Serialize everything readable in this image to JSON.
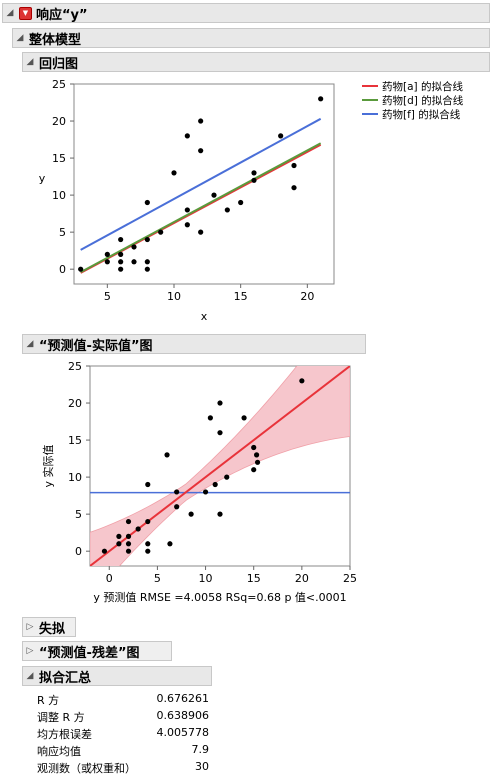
{
  "report": {
    "title": "响应“y”",
    "whole_model": "整体模型",
    "regression_plot": {
      "title": "回归图",
      "ylabel": "y",
      "xlabel": "x",
      "legend": [
        "药物[a] 的拟合线",
        "药物[d] 的拟合线",
        "药物[f] 的拟合线"
      ]
    },
    "actual_by_predicted": {
      "title": "“预测值-实际值”图",
      "ylabel": "y 实际值",
      "xlabel": "y 预测值 RMSE =4.0058 RSq=0.68 p 值<.0001"
    },
    "lack_of_fit": "失拟",
    "residual_by_predicted": "“预测值-残差”图",
    "summary": {
      "title": "拟合汇总",
      "rows": [
        {
          "label": "R 方",
          "value": "0.676261"
        },
        {
          "label": "调整 R 方",
          "value": "0.638906"
        },
        {
          "label": "均方根误差",
          "value": "4.005778"
        },
        {
          "label": "响应均值",
          "value": "7.9"
        },
        {
          "label": "观测数（或权重和）",
          "value": "30"
        }
      ]
    }
  },
  "colors": {
    "red": "#e8333a",
    "green": "#5a9a3c",
    "blue": "#4a6fd8",
    "band": "#f6c6cc"
  },
  "chart_data": [
    {
      "type": "scatter",
      "title": "回归图",
      "xlabel": "x",
      "ylabel": "y",
      "xlim": [
        2.5,
        22
      ],
      "ylim": [
        -2,
        25
      ],
      "xticks": [
        5,
        10,
        15,
        20
      ],
      "yticks": [
        0,
        5,
        10,
        15,
        20,
        25
      ],
      "points": [
        [
          3,
          0
        ],
        [
          5,
          2
        ],
        [
          5,
          1
        ],
        [
          6,
          4
        ],
        [
          6,
          2
        ],
        [
          6,
          1
        ],
        [
          6,
          0
        ],
        [
          7,
          3
        ],
        [
          7,
          1
        ],
        [
          8,
          9
        ],
        [
          8,
          4
        ],
        [
          8,
          1
        ],
        [
          8,
          0
        ],
        [
          9,
          5
        ],
        [
          10,
          13
        ],
        [
          11,
          18
        ],
        [
          11,
          8
        ],
        [
          11,
          6
        ],
        [
          12,
          20
        ],
        [
          12,
          16
        ],
        [
          12,
          5
        ],
        [
          13,
          10
        ],
        [
          14,
          8
        ],
        [
          15,
          9
        ],
        [
          16,
          13
        ],
        [
          16,
          12
        ],
        [
          18,
          18
        ],
        [
          19,
          14
        ],
        [
          19,
          11
        ],
        [
          21,
          23
        ]
      ],
      "series": [
        {
          "name": "药物[a] 的拟合线",
          "x": [
            3,
            21
          ],
          "values": [
            -0.5,
            16.8
          ]
        },
        {
          "name": "药物[d] 的拟合线",
          "x": [
            3,
            21
          ],
          "values": [
            -0.4,
            17.0
          ]
        },
        {
          "name": "药物[f] 的拟合线",
          "x": [
            3,
            21
          ],
          "values": [
            2.6,
            20.3
          ]
        }
      ],
      "legend": "right"
    },
    {
      "type": "scatter",
      "title": "“预测值-实际值”图",
      "xlabel": "y 预测值",
      "ylabel": "y 实际值",
      "xlim": [
        -2,
        25
      ],
      "ylim": [
        -2,
        25
      ],
      "xticks": [
        0,
        5,
        10,
        15,
        20,
        25
      ],
      "yticks": [
        0,
        5,
        10,
        15,
        20,
        25
      ],
      "mean_line": 7.9,
      "points": [
        [
          -0.5,
          0
        ],
        [
          1,
          2
        ],
        [
          1,
          1
        ],
        [
          2,
          4
        ],
        [
          2,
          2
        ],
        [
          2,
          1
        ],
        [
          2,
          0
        ],
        [
          3,
          3
        ],
        [
          4,
          9
        ],
        [
          4,
          4
        ],
        [
          4,
          1
        ],
        [
          4,
          0
        ],
        [
          6,
          13
        ],
        [
          6.3,
          1
        ],
        [
          7,
          8
        ],
        [
          7,
          6
        ],
        [
          8.5,
          5
        ],
        [
          10,
          8
        ],
        [
          10.5,
          18
        ],
        [
          11,
          9
        ],
        [
          11.5,
          20
        ],
        [
          11.5,
          16
        ],
        [
          11.5,
          5
        ],
        [
          12.2,
          10
        ],
        [
          14,
          18
        ],
        [
          15,
          14
        ],
        [
          15,
          11
        ],
        [
          15.3,
          13
        ],
        [
          15.4,
          12
        ],
        [
          20,
          23
        ]
      ]
    }
  ]
}
